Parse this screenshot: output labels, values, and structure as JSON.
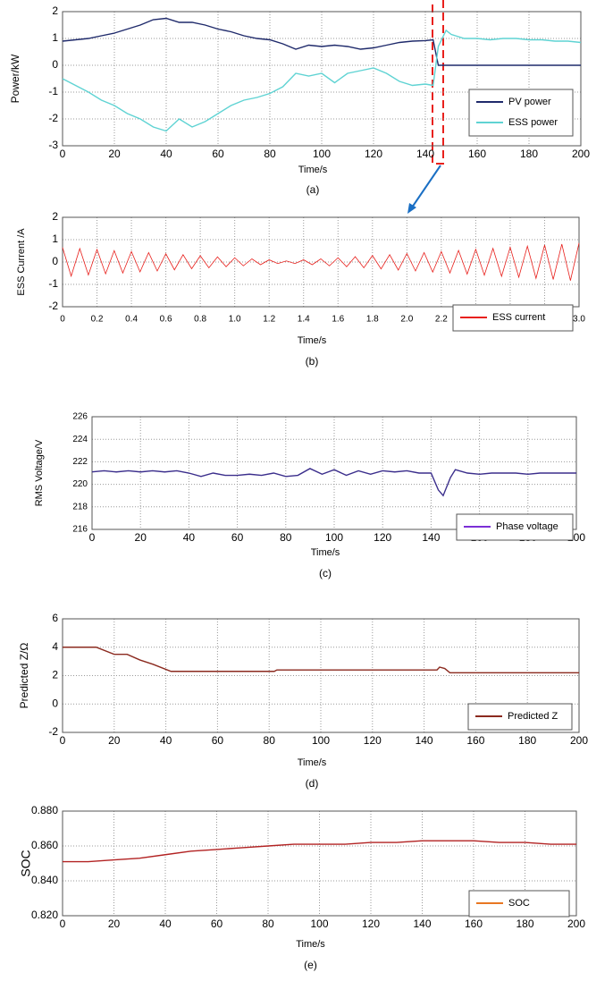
{
  "chart_data": [
    {
      "type": "line",
      "caption": "(a)",
      "x_label": "Time/s",
      "y_label": "Power/kW",
      "x": [
        0,
        5,
        10,
        15,
        20,
        25,
        30,
        35,
        40,
        45,
        50,
        55,
        60,
        65,
        70,
        75,
        80,
        85,
        90,
        95,
        100,
        105,
        110,
        115,
        120,
        125,
        130,
        135,
        140,
        143,
        145,
        148,
        150,
        155,
        160,
        165,
        170,
        175,
        180,
        185,
        190,
        195,
        200
      ],
      "series": [
        {
          "name": "PV power",
          "color": "#1f2a6b",
          "values": [
            0.9,
            0.95,
            1.0,
            1.1,
            1.2,
            1.35,
            1.5,
            1.7,
            1.75,
            1.6,
            1.6,
            1.5,
            1.35,
            1.25,
            1.1,
            1.0,
            0.95,
            0.8,
            0.6,
            0.75,
            0.7,
            0.75,
            0.7,
            0.6,
            0.65,
            0.75,
            0.85,
            0.9,
            0.92,
            0.95,
            0,
            0,
            0,
            0,
            0,
            0,
            0,
            0,
            0,
            0,
            0,
            0,
            0
          ]
        },
        {
          "name": "ESS power",
          "color": "#5fd3d3",
          "values": [
            -0.5,
            -0.75,
            -1.0,
            -1.3,
            -1.5,
            -1.8,
            -2.0,
            -2.3,
            -2.45,
            -2.0,
            -2.3,
            -2.1,
            -1.8,
            -1.5,
            -1.3,
            -1.2,
            -1.05,
            -0.8,
            -0.3,
            -0.4,
            -0.3,
            -0.65,
            -0.3,
            -0.2,
            -0.1,
            -0.3,
            -0.6,
            -0.75,
            -0.7,
            -0.75,
            0.7,
            1.3,
            1.15,
            1.0,
            1.0,
            0.95,
            1.0,
            1.0,
            0.95,
            0.95,
            0.9,
            0.9,
            0.85
          ]
        }
      ],
      "xlim": [
        0,
        200
      ],
      "xticks": [
        0,
        20,
        40,
        60,
        80,
        100,
        120,
        140,
        160,
        180,
        200
      ],
      "ylim": [
        -3,
        2
      ],
      "yticks": [
        -3,
        -2,
        -1,
        0,
        1,
        2
      ],
      "grid": true,
      "legend": "lower right"
    },
    {
      "type": "line",
      "caption": "(b)",
      "x_label": "Time/s",
      "y_label": "ESS Current /A",
      "x": [
        0,
        0.05,
        0.1,
        0.15,
        0.2,
        0.25,
        0.3,
        0.35,
        0.4,
        0.45,
        0.5,
        0.55,
        0.6,
        0.65,
        0.7,
        0.75,
        0.8,
        0.85,
        0.9,
        0.95,
        1.0,
        1.05,
        1.1,
        1.15,
        1.2,
        1.25,
        1.3,
        1.35,
        1.4,
        1.45,
        1.5,
        1.55,
        1.6,
        1.65,
        1.7,
        1.75,
        1.8,
        1.85,
        1.9,
        1.95,
        2.0,
        2.05,
        2.1,
        2.15,
        2.2,
        2.25,
        2.3,
        2.35,
        2.4,
        2.45,
        2.5,
        2.55,
        2.6,
        2.65,
        2.7,
        2.75,
        2.8,
        2.85,
        2.9,
        2.95,
        3.0
      ],
      "series": [
        {
          "name": "ESS current",
          "color": "#e8201c",
          "values": [
            0.65,
            -0.63,
            0.6,
            -0.58,
            0.56,
            -0.53,
            0.51,
            -0.49,
            0.47,
            -0.44,
            0.42,
            -0.4,
            0.37,
            -0.35,
            0.33,
            -0.3,
            0.28,
            -0.26,
            0.23,
            -0.21,
            0.19,
            -0.17,
            0.14,
            -0.12,
            0.1,
            -0.07,
            0.05,
            -0.07,
            0.1,
            -0.12,
            0.14,
            -0.17,
            0.19,
            -0.21,
            0.24,
            -0.26,
            0.29,
            -0.31,
            0.33,
            -0.36,
            0.38,
            -0.4,
            0.42,
            -0.45,
            0.47,
            -0.49,
            0.52,
            -0.54,
            0.57,
            -0.59,
            0.61,
            -0.64,
            0.66,
            -0.68,
            0.71,
            -0.73,
            0.76,
            -0.78,
            0.8,
            -0.83,
            0.85
          ]
        }
      ],
      "xlim": [
        0,
        3
      ],
      "xticks": [
        0,
        0.2,
        0.4,
        0.6,
        0.8,
        {
          "value": 1,
          "label": "1.0"
        },
        1.2,
        1.4,
        1.6,
        1.8,
        {
          "value": 2,
          "label": "2.0"
        },
        2.2,
        2.4,
        2.6,
        2.8,
        {
          "value": 3,
          "label": "3.0"
        }
      ],
      "ylim": [
        -2,
        2
      ],
      "yticks": [
        -2,
        -1,
        0,
        1,
        2
      ],
      "grid": true,
      "legend": "lower right"
    },
    {
      "type": "line",
      "caption": "(c)",
      "x_label": "Time/s",
      "y_label": "RMS Voltage/V",
      "x": [
        0,
        5,
        10,
        15,
        20,
        25,
        30,
        35,
        40,
        45,
        50,
        55,
        60,
        65,
        70,
        75,
        80,
        85,
        90,
        95,
        100,
        105,
        110,
        115,
        120,
        125,
        130,
        135,
        140,
        143,
        145,
        148,
        150,
        155,
        160,
        165,
        170,
        175,
        180,
        185,
        190,
        195,
        200
      ],
      "series": [
        {
          "name": "Phase voltage",
          "color": "#3b2e8c",
          "legend_color": "#7b2fd6",
          "values": [
            221.1,
            221.2,
            221.1,
            221.2,
            221.1,
            221.2,
            221.1,
            221.2,
            221.0,
            220.7,
            221.0,
            220.8,
            220.8,
            220.9,
            220.8,
            221.0,
            220.7,
            220.8,
            221.4,
            220.9,
            221.3,
            220.8,
            221.2,
            220.9,
            221.2,
            221.1,
            221.2,
            221.0,
            221.0,
            219.5,
            219.0,
            220.6,
            221.3,
            221.0,
            220.9,
            221.0,
            221.0,
            221.0,
            220.9,
            221.0,
            221.0,
            221.0,
            221.0
          ]
        }
      ],
      "xlim": [
        0,
        200
      ],
      "xticks": [
        0,
        20,
        40,
        60,
        80,
        100,
        120,
        140,
        160,
        180,
        200
      ],
      "ylim": [
        216,
        226
      ],
      "yticks": [
        216,
        218,
        220,
        222,
        224,
        226
      ],
      "grid": true,
      "legend": "lower right"
    },
    {
      "type": "line",
      "caption": "(d)",
      "x_label": "Time/s",
      "y_label": "Predicted Z/Ω",
      "x": [
        0,
        13,
        20,
        25,
        30,
        35,
        42,
        82,
        83,
        145,
        146,
        148,
        150,
        200
      ],
      "series": [
        {
          "name": "Predicted Z",
          "color": "#8b2a1f",
          "values": [
            4,
            4,
            3.5,
            3.5,
            3.1,
            2.8,
            2.3,
            2.3,
            2.4,
            2.4,
            2.6,
            2.5,
            2.2,
            2.2
          ]
        }
      ],
      "xlim": [
        0,
        200
      ],
      "xticks": [
        0,
        20,
        40,
        60,
        80,
        100,
        120,
        140,
        160,
        180,
        200
      ],
      "ylim": [
        -2,
        6
      ],
      "yticks": [
        -2,
        0,
        2,
        4,
        6
      ],
      "grid": true,
      "legend": "lower right"
    },
    {
      "type": "line",
      "caption": "(e)",
      "x_label": "Time/s",
      "y_label": "SOC",
      "x": [
        0,
        10,
        20,
        30,
        40,
        50,
        60,
        70,
        80,
        90,
        100,
        110,
        120,
        130,
        140,
        150,
        160,
        170,
        180,
        190,
        200
      ],
      "series": [
        {
          "name": "SOC",
          "color": "#b22222",
          "legend_color": "#e87722",
          "values": [
            0.851,
            0.851,
            0.852,
            0.853,
            0.855,
            0.857,
            0.858,
            0.859,
            0.86,
            0.861,
            0.861,
            0.861,
            0.862,
            0.862,
            0.863,
            0.863,
            0.863,
            0.862,
            0.862,
            0.861,
            0.861
          ]
        }
      ],
      "xlim": [
        0,
        200
      ],
      "xticks": [
        0,
        20,
        40,
        60,
        80,
        100,
        120,
        140,
        160,
        180,
        200
      ],
      "ylim": [
        0.82,
        0.88
      ],
      "yticks": [
        {
          "value": 0.82,
          "label": "0.820"
        },
        {
          "value": 0.84,
          "label": "0.840"
        },
        {
          "value": 0.86,
          "label": "0.860"
        },
        {
          "value": 0.88,
          "label": "0.880"
        }
      ],
      "grid": true,
      "legend": "lower right"
    }
  ]
}
